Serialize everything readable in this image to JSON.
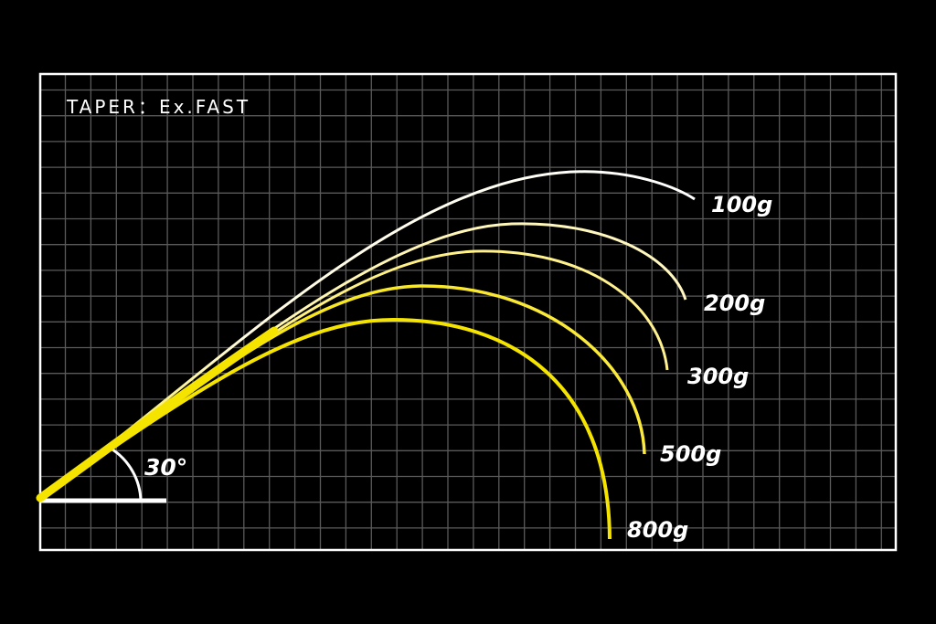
{
  "title": "TAPER：Ex.FAST",
  "angle_label": "30°",
  "colors": {
    "background": "#000000",
    "grid": "#5a5a5a",
    "frame": "#ffffff",
    "curve_base": "#f5e400",
    "curve_tip": "#fffbe6"
  },
  "curves": [
    {
      "label": "100g"
    },
    {
      "label": "200g"
    },
    {
      "label": "300g"
    },
    {
      "label": "500g"
    },
    {
      "label": "800g"
    }
  ]
}
